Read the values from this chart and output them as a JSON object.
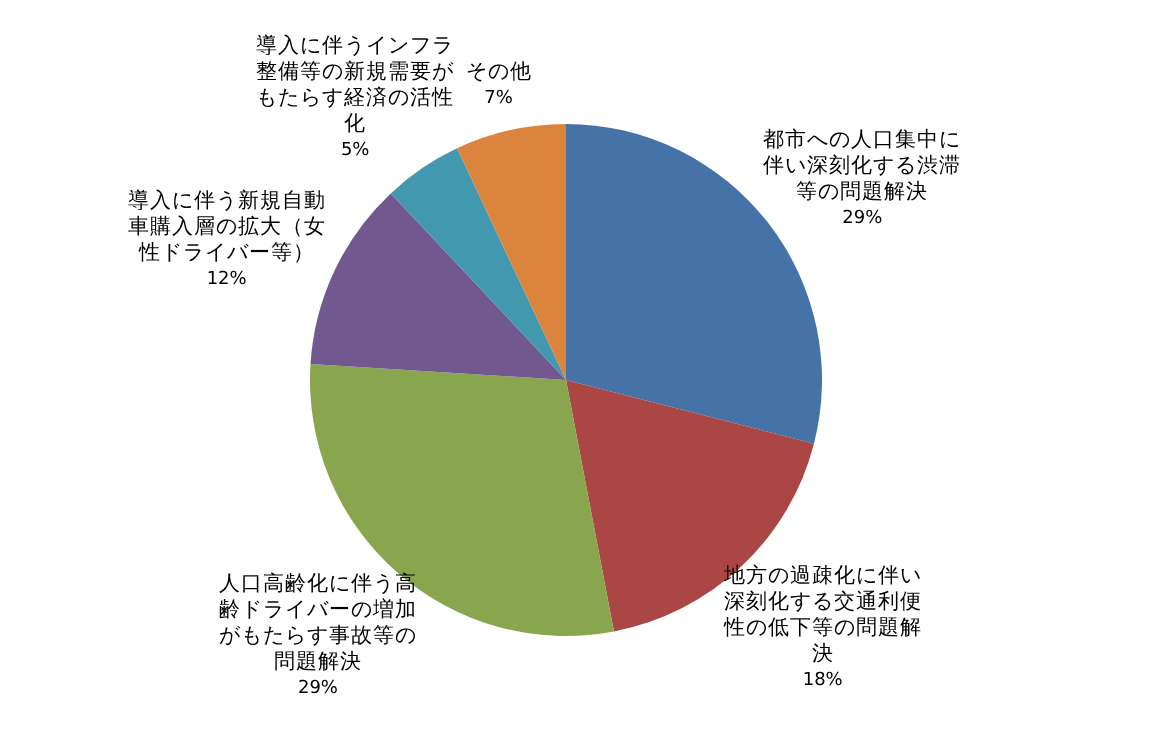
{
  "chart_data": {
    "type": "pie",
    "categories": [
      "都市への人口集中に伴い深刻化する渋滞等の問題解決",
      "地方の過疎化に伴い深刻化する交通利便性の低下等の問題解決",
      "人口高齢化に伴う高齢ドライバーの増加がもたらす事故等の問題解決",
      "導入に伴う新規自動車購入層の拡大（女性ドライバー等）",
      "導入に伴うインフラ整備等の新規需要がもたらす経済の活性化",
      "その他"
    ],
    "values": [
      29,
      18,
      29,
      12,
      5,
      7
    ],
    "colors": [
      "#4572a7",
      "#aa4643",
      "#89a54e",
      "#71588f",
      "#4198af",
      "#db843d"
    ],
    "value_labels": [
      "29%",
      "18%",
      "29%",
      "12%",
      "5%",
      "7%"
    ]
  }
}
